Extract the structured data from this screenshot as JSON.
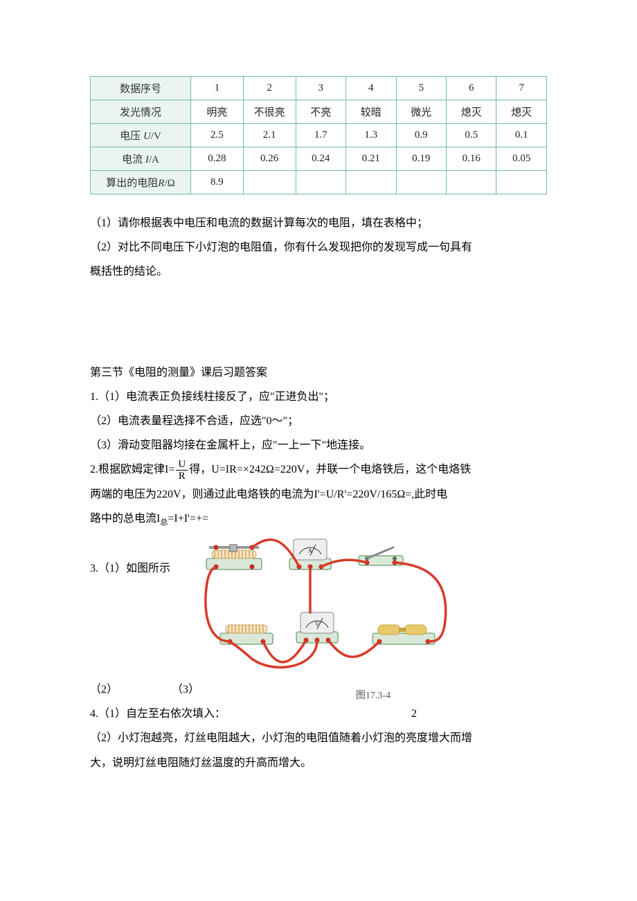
{
  "table": {
    "border_color": "#6fb9a8",
    "header_bg": "#eaf5f2",
    "header_color": "#333333",
    "cell_color": "#222222",
    "font_size": 15,
    "col_widths_pct": [
      22,
      11.5,
      11.5,
      11,
      11,
      11,
      11,
      11
    ],
    "row_headers": [
      "数据序号",
      "发光情况",
      "电压 U/V",
      "电流 I/A",
      "算出的电阻R/Ω"
    ],
    "rows": [
      [
        "1",
        "2",
        "3",
        "4",
        "5",
        "6",
        "7"
      ],
      [
        "明亮",
        "不很亮",
        "不亮",
        "较暗",
        "微光",
        "熄灭",
        "熄灭"
      ],
      [
        "2.5",
        "2.1",
        "1.7",
        "1.3",
        "0.9",
        "0.5",
        "0.1"
      ],
      [
        "0.28",
        "0.26",
        "0.24",
        "0.21",
        "0.19",
        "0.16",
        "0.05"
      ],
      [
        "8.9",
        "",
        "",
        "",
        "",
        "",
        ""
      ]
    ]
  },
  "questions": {
    "font_size": 16,
    "color": "#000000",
    "q1": "（1）请你根据表中电压和电流的数据计算每次的电阻，填在表格中；",
    "q2a": "（2）对比不同电压下小灯泡的电阻值，你有什么发现把你的发现写成一句具有",
    "q2b": "概括性的结论。"
  },
  "answers": {
    "title": "第三节《电阻的测量》课后习题答案",
    "a1_1": "1.（1）电流表正负接线柱接反了，应\"正进负出\"；",
    "a1_2": "（2）电流表量程选择不合适，应选\"0～\"；",
    "a1_3": "（3）滑动变阻器均接在金属杆上，应\"一上一下\"地连接。",
    "a2_pre": "2.根据欧姆定律I=",
    "a2_frac_num": "U",
    "a2_frac_den": "R",
    "a2_post": "得，U=IR=×242Ω=220V，并联一个电烙铁后，这个电烙铁",
    "a2_line2": "两端的电压为220V，则通过此电烙铁的电流为I'=U/R'=220V/165Ω=,此时电",
    "a2_line3_pre": "路中的总电流I",
    "a2_line3_sub": "总",
    "a2_line3_post": "=I+I'=+=",
    "a3": "3.（1）如图所示",
    "a3_2": "（2）",
    "a3_3": "（3）",
    "fig_caption": "图17.3-4",
    "a4_1_pre": "4.（1）自左至右依次填入：",
    "a4_1_val": "2",
    "a4_2a": "（2）小灯泡越亮，灯丝电阻越大，小灯泡的电阻值随着小灯泡的亮度增大而增",
    "a4_2b": "大，说明灯丝电阻随灯丝温度的升高而增大。"
  },
  "diagram": {
    "wire_color": "#d83a2a",
    "wire_width": 3.5,
    "base_fill": "#d9e8d9",
    "base_stroke": "#4a8a4a",
    "meter_body": "#eeeeee",
    "meter_stroke": "#888888",
    "terminal_color": "#c72b1f",
    "coil_color": "#d9a34a",
    "battery_body": "#e8c96a",
    "battery_cap": "#c9a23a",
    "switch_color": "#888888"
  }
}
